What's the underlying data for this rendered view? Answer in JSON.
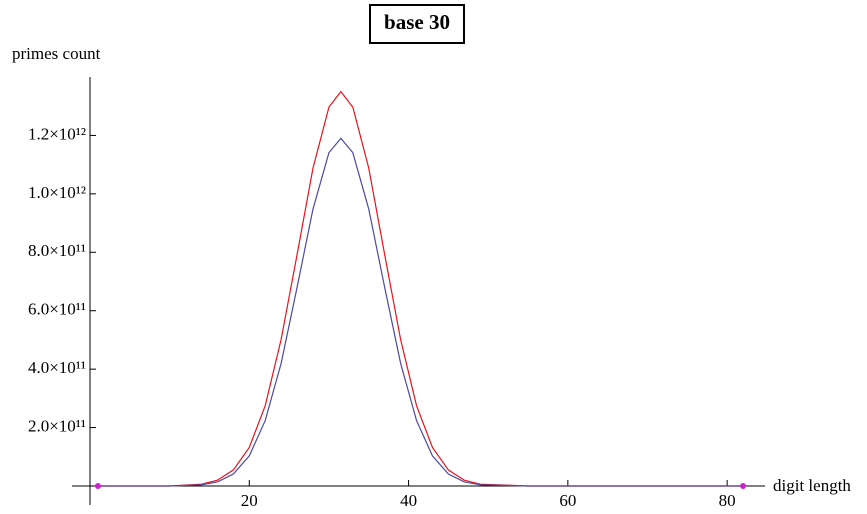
{
  "chart_data": {
    "type": "line",
    "title": "base 30",
    "y_label": "primes count",
    "x_label": "digit length",
    "x": [
      1,
      10,
      14,
      16,
      18,
      20,
      22,
      24,
      26,
      28,
      30,
      31.5,
      33,
      35,
      37,
      39,
      41,
      43,
      45,
      47,
      49,
      55,
      65,
      82
    ],
    "series": [
      {
        "color": "#e8131c",
        "values": [
          0,
          0,
          6200000000.0,
          19700000000.0,
          55000000000.0,
          132000000000.0,
          275000000000.0,
          502000000000.0,
          792000000000.0,
          1088000000000.0,
          1297000000000.0,
          1350000000000.0,
          1297000000000.0,
          1088000000000.0,
          792000000000.0,
          502000000000.0,
          275000000000.0,
          132000000000.0,
          55000000000.0,
          19700000000.0,
          6200000000.0,
          0,
          0,
          0
        ]
      },
      {
        "color": "#4a4aa0",
        "values": [
          0,
          0,
          4100000000.0,
          14000000000.0,
          41000000000.0,
          103000000000.0,
          224000000000.0,
          420000000000.0,
          680000000000.0,
          948000000000.0,
          1141000000000.0,
          1190000000000.0,
          1141000000000.0,
          948000000000.0,
          680000000000.0,
          420000000000.0,
          224000000000.0,
          103000000000.0,
          41000000000.0,
          14000000000.0,
          4100000000.0,
          0,
          0,
          0
        ]
      }
    ],
    "points": {
      "color": "#cc22cc",
      "x": [
        1,
        82
      ],
      "values": [
        0,
        0
      ]
    },
    "xlim": [
      0,
      84
    ],
    "ylim": [
      0,
      1400000000000.0
    ],
    "xticks": [
      20,
      40,
      60,
      80
    ],
    "yticks": [
      {
        "value": 200000000000.0,
        "label": "2.0×10¹¹"
      },
      {
        "value": 400000000000.0,
        "label": "4.0×10¹¹"
      },
      {
        "value": 600000000000.0,
        "label": "6.0×10¹¹"
      },
      {
        "value": 800000000000.0,
        "label": "8.0×10¹¹"
      },
      {
        "value": 1000000000000.0,
        "label": "1.0×10¹²"
      },
      {
        "value": 1200000000000.0,
        "label": "1.2×10¹²"
      }
    ]
  }
}
